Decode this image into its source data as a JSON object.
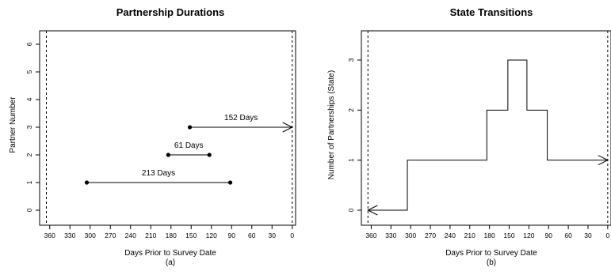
{
  "chart_data": [
    {
      "type": "line",
      "panel": "(a)",
      "title": "Partnership Durations",
      "xlabel": "Days Prior to Survey Date",
      "ylabel": "Partner Number",
      "xlim": [
        375,
        -5
      ],
      "ylim": [
        0,
        6
      ],
      "x_reversed": true,
      "x_ticks": [
        360,
        330,
        300,
        270,
        240,
        210,
        180,
        150,
        120,
        90,
        60,
        30,
        0
      ],
      "y_ticks": [
        0,
        1,
        2,
        3,
        4,
        5,
        6
      ],
      "reference_lines_x": [
        365,
        0
      ],
      "series": [
        {
          "partner": 1,
          "start": 305,
          "end": 92,
          "label": "213 Days",
          "end_arrow": false
        },
        {
          "partner": 2,
          "start": 184,
          "end": 123,
          "label": "61 Days",
          "end_arrow": false
        },
        {
          "partner": 3,
          "start": 152,
          "end": 0,
          "label": "152 Days",
          "end_arrow": true
        }
      ]
    },
    {
      "type": "line",
      "panel": "(b)",
      "title": "State Transitions",
      "xlabel": "Days Prior to Survey Date",
      "ylabel": "Number of Partnerships (State)",
      "xlim": [
        375,
        -5
      ],
      "ylim": [
        0,
        3
      ],
      "x_reversed": true,
      "step": true,
      "x_ticks": [
        360,
        330,
        300,
        270,
        240,
        210,
        180,
        150,
        120,
        90,
        60,
        30,
        0
      ],
      "y_ticks": [
        0,
        1,
        2,
        3
      ],
      "reference_lines_x": [
        365,
        0
      ],
      "arrows": [
        "left-at-start",
        "right-at-end"
      ],
      "x": [
        365,
        305,
        305,
        184,
        184,
        152,
        152,
        123,
        123,
        92,
        92,
        0
      ],
      "y": [
        0,
        0,
        1,
        1,
        2,
        2,
        3,
        3,
        2,
        2,
        1,
        1
      ]
    }
  ]
}
